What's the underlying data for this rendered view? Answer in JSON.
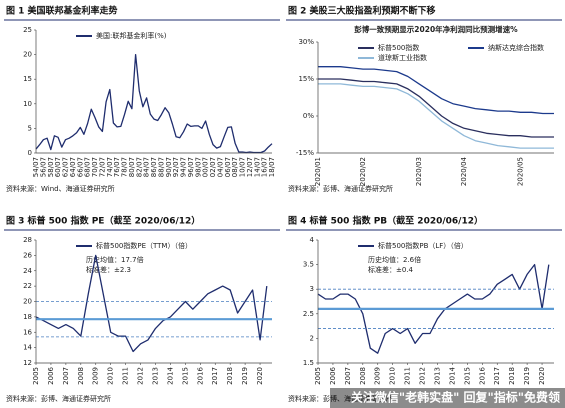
{
  "chart_data": [
    {
      "type": "line",
      "title": "图 1 美国联邦基金利率走势",
      "source": "资料来源：Wind、海通证券研究所",
      "categories": [
        "54/07",
        null,
        "56/07",
        null,
        "58/07",
        null,
        "60/07",
        null,
        "62/07",
        null,
        "64/07",
        null,
        "66/07",
        null,
        "68/07",
        null,
        "70/07",
        null,
        "72/07",
        null,
        "74/07",
        null,
        "76/07",
        null,
        "78/07",
        null,
        "80/07",
        null,
        "82/07",
        null,
        "84/07",
        null,
        "86/07",
        null,
        "88/07",
        null,
        "90/07",
        null,
        "92/07",
        null,
        "94/07",
        null,
        "96/07",
        null,
        "98/07",
        null,
        "00/07",
        null,
        "02/07",
        null,
        "04/07",
        null,
        "06/07",
        null,
        "08/07",
        null,
        "10/07",
        null,
        "12/07",
        null,
        "14/07",
        null,
        "16/07",
        null,
        "18/07"
      ],
      "series": [
        {
          "name": "美国:联邦基金利率(%)",
          "color": "#1f2d6e",
          "values": [
            0.8,
            1.7,
            2.7,
            3.0,
            0.7,
            3.5,
            3.2,
            1.2,
            2.7,
            3.0,
            3.5,
            4.1,
            5.2,
            3.8,
            6.0,
            8.9,
            7.2,
            5.3,
            4.4,
            10.4,
            12.9,
            6.1,
            5.3,
            5.4,
            7.8,
            10.5,
            9.0,
            20,
            12.6,
            9.4,
            11.2,
            7.9,
            6.9,
            6.6,
            7.8,
            9.2,
            8.2,
            5.9,
            3.3,
            3.1,
            4.3,
            5.9,
            5.4,
            5.5,
            5.5,
            5.0,
            6.5,
            3.8,
            1.7,
            1.0,
            1.3,
            3.3,
            5.2,
            5.3,
            2.0,
            0.2,
            0.2,
            0.1,
            0.2,
            0.1,
            0.1,
            0.1,
            0.4,
            1.2,
            1.9
          ]
        }
      ],
      "ylim": [
        0,
        25
      ],
      "yticks": [
        0,
        5,
        10,
        15,
        20,
        25
      ]
    },
    {
      "type": "line",
      "title": "图 2 美股三大股指盈利预期不断下移",
      "subtitle": "彭博一致预期显示2020年净利润同比预测增速%",
      "source": "资料来源：彭博、海通证券研究所",
      "categories": [
        "2020/01",
        null,
        null,
        null,
        "2020/02",
        null,
        null,
        null,
        null,
        "2020/03",
        null,
        null,
        null,
        "2020/04",
        null,
        null,
        null,
        null,
        "2020/05",
        null,
        null,
        null
      ],
      "series": [
        {
          "name": "标普500指数",
          "color": "#2a2f5e",
          "values": [
            15,
            15,
            15,
            14.5,
            14,
            14,
            13.5,
            13,
            11,
            8,
            4,
            0,
            -3,
            -5,
            -6,
            -7,
            -7.5,
            -8,
            -8,
            -8.5,
            -8.5,
            -8.5
          ]
        },
        {
          "name": "纳斯达克综合指数",
          "color": "#1c3a8c",
          "values": [
            20,
            20,
            20,
            19.5,
            19,
            19,
            18.5,
            18,
            16,
            13,
            10,
            7,
            5,
            4,
            3,
            2.5,
            2,
            2,
            1.5,
            1.5,
            1,
            1
          ]
        },
        {
          "name": "道琼斯工业指数",
          "color": "#8fb8d8",
          "values": [
            13,
            13,
            13,
            12.5,
            12,
            12,
            11.5,
            11,
            9,
            6,
            2,
            -2,
            -5,
            -8,
            -10,
            -11,
            -12,
            -12.5,
            -13,
            -13,
            -13,
            -13
          ]
        }
      ],
      "ylim": [
        -15,
        30
      ],
      "yticks": [
        {
          "value": -15,
          "label": "-15%"
        },
        {
          "value": 0,
          "label": "0%"
        },
        {
          "value": 15,
          "label": "15%"
        },
        {
          "value": 30,
          "label": "30%"
        }
      ]
    },
    {
      "type": "line",
      "title": "图 3 标普 500 指数 PE（截至 2020/06/12）",
      "source": "资料来源：彭博、海通证券研究所",
      "x": [
        2005,
        2005.5,
        2006,
        2006.5,
        2007,
        2007.5,
        2008,
        2008.5,
        2009,
        2009.5,
        2010,
        2010.5,
        2011,
        2011.5,
        2012,
        2012.5,
        2013,
        2013.5,
        2014,
        2014.5,
        2015,
        2015.5,
        2016,
        2016.5,
        2017,
        2017.5,
        2018,
        2018.5,
        2019,
        2019.5,
        2020,
        2020.45
      ],
      "series": [
        {
          "name": "标普500指数PE（TTM）（倍）",
          "color": "#1f2d6e",
          "values": [
            18,
            17.5,
            17,
            16.5,
            17,
            16.5,
            15.5,
            21,
            26,
            21,
            16,
            15.5,
            15.5,
            13.5,
            14.5,
            15,
            16.5,
            17.5,
            18,
            19,
            20,
            19,
            20,
            21,
            21.5,
            22,
            21.5,
            18.5,
            20,
            21.5,
            15,
            22
          ]
        }
      ],
      "annotations": [
        "历史均值：17.7倍",
        "标准差：±2.3"
      ],
      "mean": 17.7,
      "band": [
        15.4,
        20.0
      ],
      "xlim": [
        2005,
        2020.8
      ],
      "xticks": [
        2005,
        2006,
        2007,
        2008,
        2009,
        2010,
        2011,
        2012,
        2013,
        2014,
        2015,
        2016,
        2017,
        2018,
        2019,
        2020
      ],
      "ylim": [
        12,
        28
      ],
      "yticks": [
        12,
        14,
        16,
        18,
        20,
        22,
        24,
        26,
        28
      ]
    },
    {
      "type": "line",
      "title": "图 4 标普 500 指数 PB（截至 2020/06/12）",
      "source": "资料来源：彭博、海通证券研究所",
      "x": [
        2005,
        2005.5,
        2006,
        2006.5,
        2007,
        2007.5,
        2008,
        2008.5,
        2009,
        2009.5,
        2010,
        2010.5,
        2011,
        2011.5,
        2012,
        2012.5,
        2013,
        2013.5,
        2014,
        2014.5,
        2015,
        2015.5,
        2016,
        2016.5,
        2017,
        2017.5,
        2018,
        2018.5,
        2019,
        2019.5,
        2020,
        2020.45
      ],
      "series": [
        {
          "name": "标普500指数PB（LF）（倍）",
          "color": "#1f2d6e",
          "values": [
            2.9,
            2.8,
            2.8,
            2.9,
            2.9,
            2.8,
            2.5,
            1.8,
            1.7,
            2.1,
            2.2,
            2.1,
            2.2,
            1.9,
            2.1,
            2.1,
            2.4,
            2.6,
            2.7,
            2.8,
            2.9,
            2.8,
            2.8,
            2.9,
            3.1,
            3.2,
            3.3,
            3.0,
            3.3,
            3.5,
            2.6,
            3.5
          ]
        }
      ],
      "annotations": [
        "历史均值：2.6倍",
        "标准差：±0.4"
      ],
      "mean": 2.6,
      "band": [
        2.2,
        3.0
      ],
      "xlim": [
        2005,
        2020.8
      ],
      "xticks": [
        2005,
        2006,
        2007,
        2008,
        2009,
        2010,
        2011,
        2012,
        2013,
        2014,
        2015,
        2016,
        2017,
        2018,
        2019,
        2020
      ],
      "ylim": [
        1.5,
        4
      ],
      "yticks": [
        1.5,
        2,
        2.5,
        3,
        3.5,
        4
      ]
    }
  ],
  "watermark": "关注微信\"老韩实盘\" 回复\"指标\"免费领"
}
